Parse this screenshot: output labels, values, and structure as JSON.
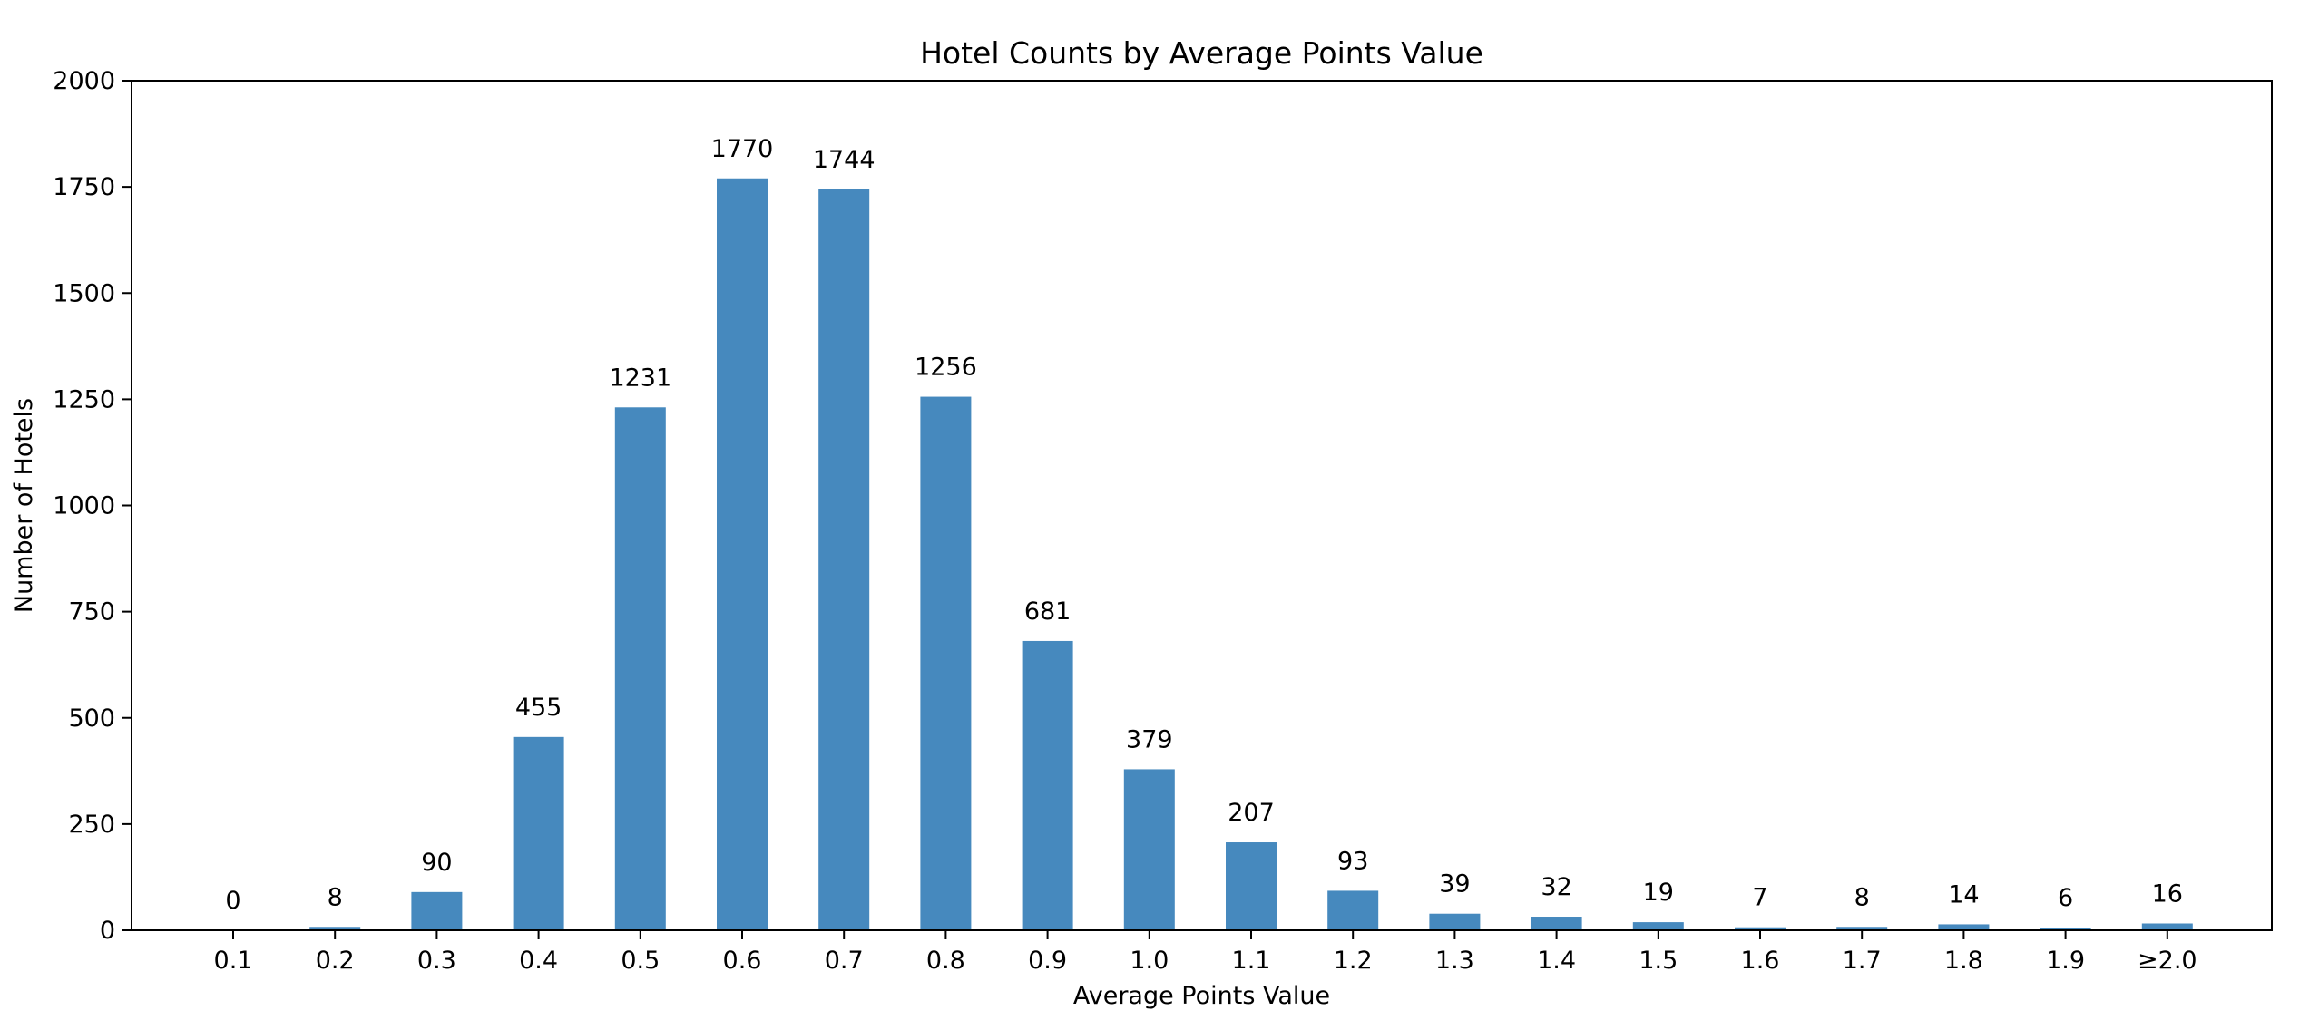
{
  "chart_data": {
    "type": "bar",
    "title": "Hotel Counts by Average Points Value",
    "xlabel": "Average Points Value",
    "ylabel": "Number of Hotels",
    "categories": [
      "0.1",
      "0.2",
      "0.3",
      "0.4",
      "0.5",
      "0.6",
      "0.7",
      "0.8",
      "0.9",
      "1.0",
      "1.1",
      "1.2",
      "1.3",
      "1.4",
      "1.5",
      "1.6",
      "1.7",
      "1.8",
      "1.9",
      "≥2.0"
    ],
    "values": [
      0,
      8,
      90,
      455,
      1231,
      1770,
      1744,
      1256,
      681,
      379,
      207,
      93,
      39,
      32,
      19,
      7,
      8,
      14,
      6,
      16
    ],
    "data_labels": [
      "0",
      "8",
      "90",
      "455",
      "1231",
      "1770",
      "1744",
      "1256",
      "681",
      "379",
      "207",
      "93",
      "39",
      "32",
      "19",
      "7",
      "8",
      "14",
      "6",
      "16"
    ],
    "ylim": [
      0,
      2000
    ],
    "yticks": [
      0,
      250,
      500,
      750,
      1000,
      1250,
      1500,
      1750,
      2000
    ],
    "ytick_labels": [
      "0",
      "250",
      "500",
      "750",
      "1000",
      "1250",
      "1500",
      "1750",
      "2000"
    ],
    "bar_color": "#4689be",
    "grid": false,
    "legend": "none"
  }
}
